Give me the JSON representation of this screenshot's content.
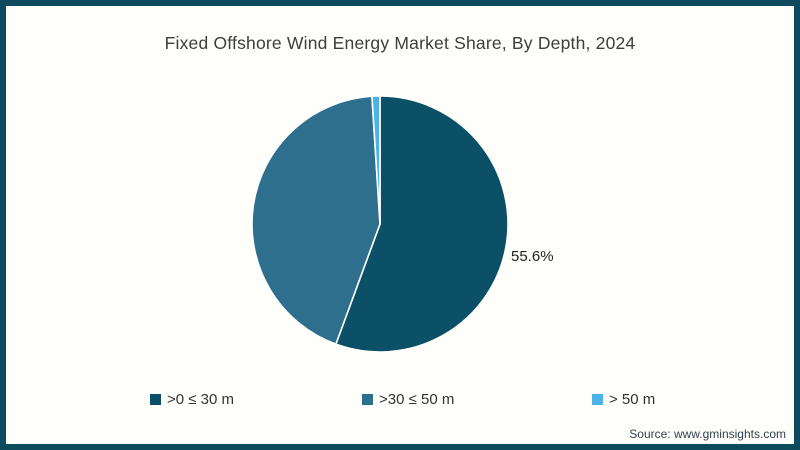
{
  "page": {
    "background": "#fefefb",
    "frame_color": "#0d4a5e"
  },
  "chart_data": {
    "type": "pie",
    "title": "Fixed Offshore Wind Energy Market Share, By Depth, 2024",
    "categories": [
      ">0 ≤ 30 m",
      ">30 ≤ 50 m",
      "> 50 m"
    ],
    "values": [
      55.6,
      43.4,
      1.0
    ],
    "colors": [
      "#0b5066",
      "#2f6f8e",
      "#4db2e8"
    ],
    "slice_border_color": "#ffffff",
    "start_angle_deg": 0,
    "direction": "clockwise",
    "data_labels": [
      {
        "slice": ">0 ≤ 30 m",
        "text": "55.6%",
        "position": "outside-right"
      }
    ],
    "legend_position": "bottom"
  },
  "footer": {
    "source": "Source: www.gminsights.com"
  }
}
